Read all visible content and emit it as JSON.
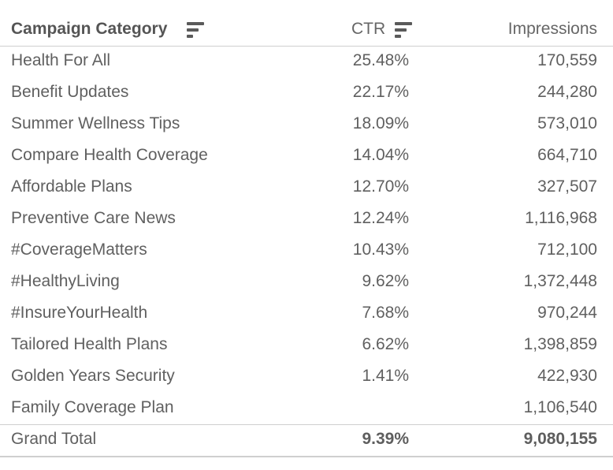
{
  "table": {
    "headers": {
      "category": "Campaign Category",
      "ctr": "CTR",
      "impressions": "Impressions"
    },
    "rows": [
      {
        "category": "Health For All",
        "ctr": "25.48%",
        "impressions": "170,559"
      },
      {
        "category": "Benefit Updates",
        "ctr": "22.17%",
        "impressions": "244,280"
      },
      {
        "category": "Summer Wellness Tips",
        "ctr": "18.09%",
        "impressions": "573,010"
      },
      {
        "category": "Compare Health Coverage",
        "ctr": "14.04%",
        "impressions": "664,710"
      },
      {
        "category": "Affordable Plans",
        "ctr": "12.70%",
        "impressions": "327,507"
      },
      {
        "category": "Preventive Care News",
        "ctr": "12.24%",
        "impressions": "1,116,968"
      },
      {
        "category": "#CoverageMatters",
        "ctr": "10.43%",
        "impressions": "712,100"
      },
      {
        "category": "#HealthyLiving",
        "ctr": "9.62%",
        "impressions": "1,372,448"
      },
      {
        "category": "#InsureYourHealth",
        "ctr": "7.68%",
        "impressions": "970,244"
      },
      {
        "category": "Tailored Health Plans",
        "ctr": "6.62%",
        "impressions": "1,398,859"
      },
      {
        "category": "Golden Years Security",
        "ctr": "1.41%",
        "impressions": "422,930"
      },
      {
        "category": "Family Coverage Plan",
        "ctr": "",
        "impressions": "1,106,540"
      }
    ],
    "total": {
      "label": "Grand Total",
      "ctr": "9.39%",
      "impressions": "9,080,155"
    }
  },
  "icons": {
    "sort_category": "sort-descending-icon",
    "sort_ctr": "sort-descending-icon"
  }
}
